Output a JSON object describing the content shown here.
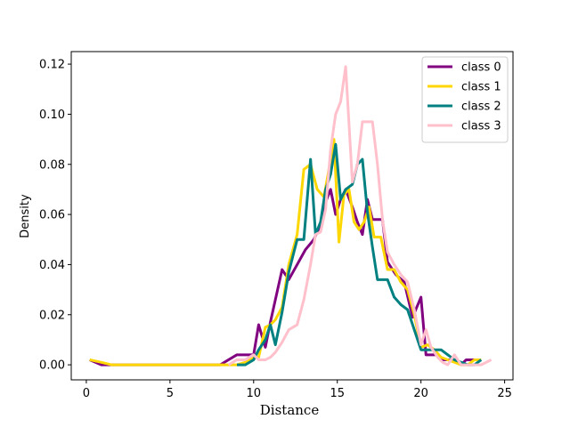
{
  "chart_data": {
    "type": "line",
    "title": "",
    "xlabel": "Distance",
    "ylabel": "Density",
    "xlim": [
      -0.9,
      25.5
    ],
    "ylim": [
      -0.006,
      0.125
    ],
    "x_ticks": [
      0,
      5,
      10,
      15,
      20,
      25
    ],
    "y_ticks": [
      0.0,
      0.02,
      0.04,
      0.06,
      0.08,
      0.1,
      0.12
    ],
    "x_tick_labels": [
      "0",
      "5",
      "10",
      "15",
      "20",
      "25"
    ],
    "y_tick_labels": [
      "0.00",
      "0.02",
      "0.04",
      "0.06",
      "0.08",
      "0.10",
      "0.12"
    ],
    "grid": false,
    "legend_position": "top-right",
    "series": [
      {
        "name": "class 0",
        "color": "#800080",
        "x": [
          0.2,
          0.9,
          1.5,
          3,
          5,
          7,
          8,
          9,
          9.6,
          10,
          10.3,
          10.7,
          11.0,
          11.3,
          11.7,
          12.1,
          12.6,
          13.1,
          13.6,
          14.0,
          14.3,
          14.6,
          14.9,
          15.2,
          15.5,
          15.9,
          16.2,
          16.5,
          16.8,
          17.1,
          17.4,
          17.7,
          18.0,
          18.5,
          19.0,
          19.5,
          20.0,
          20.3,
          20.6,
          21.0,
          21.3,
          21.6,
          22.0,
          22.4,
          22.7,
          23.1,
          23.5
        ],
        "y": [
          0.002,
          0.0,
          0.0,
          0.0,
          0.0,
          0.0,
          0.0,
          0.004,
          0.004,
          0.004,
          0.016,
          0.007,
          0.017,
          0.026,
          0.038,
          0.034,
          0.04,
          0.046,
          0.05,
          0.056,
          0.065,
          0.07,
          0.06,
          0.066,
          0.07,
          0.063,
          0.057,
          0.052,
          0.066,
          0.058,
          0.058,
          0.058,
          0.041,
          0.036,
          0.033,
          0.019,
          0.027,
          0.004,
          0.004,
          0.004,
          0.002,
          0.002,
          0.002,
          0.0,
          0.002,
          0.002,
          0.002
        ]
      },
      {
        "name": "class 1",
        "color": "#FFD700",
        "x": [
          0.2,
          0.9,
          1.5,
          3,
          5,
          7,
          8,
          9,
          9.5,
          10,
          10.3,
          10.7,
          11.0,
          11.3,
          11.7,
          12.1,
          12.6,
          13.0,
          13.4,
          13.8,
          14.2,
          14.5,
          14.8,
          15.1,
          15.4,
          15.7,
          16.0,
          16.3,
          16.6,
          16.9,
          17.2,
          17.6,
          18.0,
          18.4,
          18.8,
          19.2,
          19.6,
          20.0,
          20.4,
          20.8,
          21.2,
          21.6,
          22.0,
          22.4,
          22.8,
          23.2,
          23.6
        ],
        "y": [
          0.002,
          0.001,
          0.0,
          0.0,
          0.0,
          0.0,
          0.0,
          0.0,
          0.001,
          0.003,
          0.003,
          0.015,
          0.016,
          0.018,
          0.023,
          0.04,
          0.052,
          0.078,
          0.08,
          0.07,
          0.067,
          0.078,
          0.09,
          0.049,
          0.068,
          0.07,
          0.057,
          0.054,
          0.057,
          0.063,
          0.051,
          0.051,
          0.038,
          0.038,
          0.033,
          0.03,
          0.02,
          0.007,
          0.008,
          0.006,
          0.003,
          0.002,
          0.001,
          0.0,
          0.0,
          0.002,
          0.002
        ]
      },
      {
        "name": "class 2",
        "color": "#008080",
        "x": [
          9,
          9.5,
          10,
          10.3,
          10.7,
          11.0,
          11.3,
          11.7,
          12.1,
          12.6,
          13.0,
          13.4,
          13.7,
          14.0,
          14.3,
          14.6,
          14.9,
          15.2,
          15.5,
          15.9,
          16.2,
          16.5,
          16.8,
          17.1,
          17.4,
          17.7,
          18.0,
          18.4,
          18.8,
          19.2,
          19.6,
          20.0,
          20.4,
          20.8,
          21.2,
          21.6,
          22.0,
          22.4,
          22.8,
          23.2,
          23.6
        ],
        "y": [
          0.0,
          0.0,
          0.002,
          0.006,
          0.01,
          0.016,
          0.008,
          0.021,
          0.037,
          0.05,
          0.05,
          0.082,
          0.052,
          0.057,
          0.07,
          0.076,
          0.088,
          0.066,
          0.07,
          0.072,
          0.08,
          0.082,
          0.061,
          0.047,
          0.034,
          0.034,
          0.034,
          0.027,
          0.024,
          0.022,
          0.014,
          0.006,
          0.006,
          0.006,
          0.006,
          0.004,
          0.002,
          0.001,
          0.0,
          0.0,
          0.002
        ]
      },
      {
        "name": "class 3",
        "color": "#FFC0CB",
        "x": [
          8.5,
          9,
          9.5,
          10,
          10.3,
          10.7,
          11.0,
          11.3,
          11.7,
          12.1,
          12.6,
          13.0,
          13.4,
          13.7,
          14.0,
          14.3,
          14.6,
          14.9,
          15.2,
          15.5,
          15.9,
          16.2,
          16.5,
          16.8,
          17.1,
          17.4,
          17.7,
          18.0,
          18.4,
          18.8,
          19.2,
          19.6,
          20.0,
          20.3,
          20.6,
          21.0,
          21.3,
          21.6,
          22.0,
          22.4,
          22.8,
          23.2,
          23.6,
          24.2
        ],
        "y": [
          0.0,
          0.002,
          0.002,
          0.004,
          0.002,
          0.002,
          0.003,
          0.005,
          0.009,
          0.014,
          0.016,
          0.026,
          0.04,
          0.052,
          0.053,
          0.062,
          0.086,
          0.1,
          0.105,
          0.119,
          0.073,
          0.08,
          0.097,
          0.097,
          0.097,
          0.08,
          0.058,
          0.045,
          0.04,
          0.036,
          0.033,
          0.022,
          0.008,
          0.014,
          0.007,
          0.003,
          0.001,
          0.0,
          0.004,
          0.0,
          0.0,
          0.0,
          0.0,
          0.002
        ]
      }
    ]
  }
}
